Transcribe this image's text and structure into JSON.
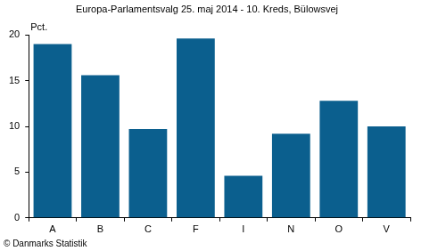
{
  "chart_data": {
    "type": "bar",
    "title": "Europa-Parlamentsvalg 25. maj 2014 - 10. Kreds, Bülowsvej",
    "ylabel": "Pct.",
    "footer": "© Danmarks Statistik",
    "categories": [
      "A",
      "B",
      "C",
      "F",
      "I",
      "N",
      "O",
      "V"
    ],
    "values": [
      19.0,
      15.6,
      9.7,
      19.6,
      4.6,
      9.2,
      12.8,
      10.0
    ],
    "color": "#0b5f8e",
    "ylim": [
      0,
      20
    ],
    "yticks": [
      0,
      5,
      10,
      15,
      20
    ],
    "grid": false
  }
}
